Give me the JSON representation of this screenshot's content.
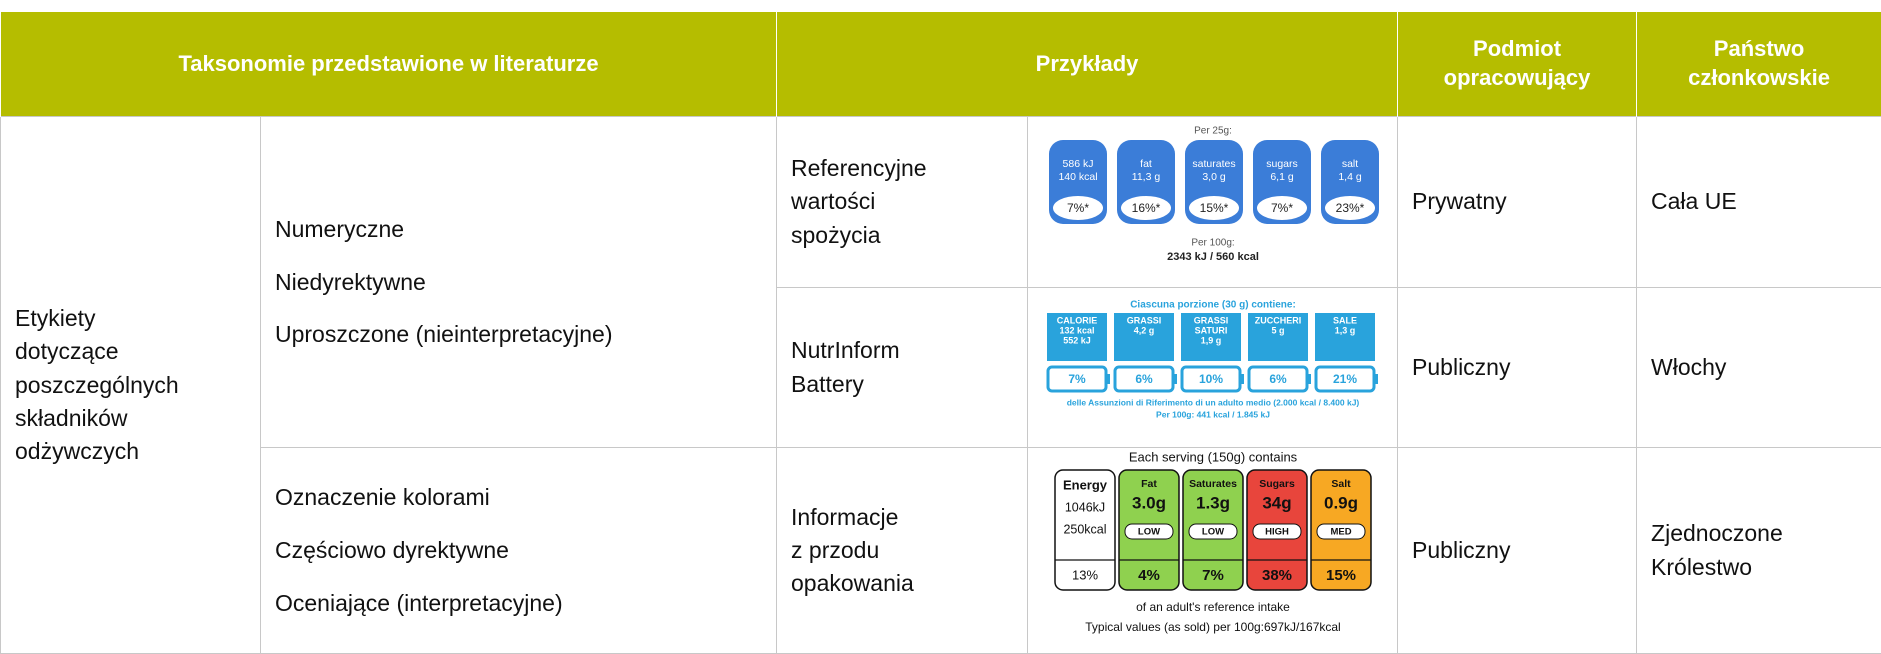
{
  "header": {
    "taxonomy": "Taksonomie przedstawione w literaturze",
    "examples": "Przykłady",
    "actor": [
      "Podmiot",
      "opracowujący"
    ],
    "state": [
      "Państwo",
      "członkowskie"
    ]
  },
  "category": [
    "Etykiety",
    "dotyczące",
    "poszczególnych",
    "składników",
    "odżywczych"
  ],
  "groups": [
    [
      "Numeryczne",
      "Niedyrektywne",
      "Uproszczone (nieinterpretacyjne)"
    ],
    [
      "Oznaczenie kolorami",
      "Częściowo dyrektywne",
      "Oceniające (interpretacyjne)"
    ]
  ],
  "rows": [
    {
      "example": [
        "Referencyjne",
        "wartości",
        "spożycia"
      ],
      "actor": "Prywatny",
      "state": [
        "Cała UE"
      ],
      "label": {
        "top": "Per 25g:",
        "tiles": [
          {
            "lines": [
              "586 kJ",
              "140 kcal"
            ],
            "pct": "7%*"
          },
          {
            "lines": [
              "fat",
              "11,3 g"
            ],
            "pct": "16%*"
          },
          {
            "lines": [
              "saturates",
              "3,0 g"
            ],
            "pct": "15%*"
          },
          {
            "lines": [
              "sugars",
              "6,1 g"
            ],
            "pct": "7%*"
          },
          {
            "lines": [
              "salt",
              "1,4 g"
            ],
            "pct": "23%*"
          }
        ],
        "bottom": [
          "Per 100g:",
          "2343 kJ / 560 kcal"
        ]
      }
    },
    {
      "example": [
        "NutrInform",
        "Battery"
      ],
      "actor": "Publiczny",
      "state": [
        "Włochy"
      ],
      "label": {
        "top": "Ciascuna porzione (30 g) contiene:",
        "tiles": [
          {
            "lines": [
              "CALORIE",
              "132 kcal",
              "552 kJ"
            ],
            "pct": "7%"
          },
          {
            "lines": [
              "GRASSI",
              "4,2 g"
            ],
            "pct": "6%"
          },
          {
            "lines": [
              "GRASSI",
              "SATURI",
              "1,9 g"
            ],
            "pct": "10%"
          },
          {
            "lines": [
              "ZUCCHERI",
              "5 g"
            ],
            "pct": "6%"
          },
          {
            "lines": [
              "SALE",
              "1,3 g"
            ],
            "pct": "21%"
          }
        ],
        "bottom": [
          "delle Assunzioni di Riferimento di un adulto medio (2.000 kcal / 8.400 kJ)",
          "Per 100g: 441 kcal / 1.845 kJ"
        ]
      }
    },
    {
      "example": [
        "Informacje",
        "z przodu",
        "opakowania"
      ],
      "actor": "Publiczny",
      "state": [
        "Zjednoczone",
        "Królestwo"
      ],
      "label": {
        "top": "Each serving (150g) contains",
        "tiles": [
          {
            "lines": [
              "Energy",
              "1046kJ",
              "250kcal"
            ],
            "pct": "13%"
          },
          {
            "lines": [
              "Fat",
              "3.0g"
            ],
            "band": "LOW",
            "pct": "4%"
          },
          {
            "lines": [
              "Saturates",
              "1.3g"
            ],
            "band": "LOW",
            "pct": "7%"
          },
          {
            "lines": [
              "Sugars",
              "34g"
            ],
            "band": "HIGH",
            "pct": "38%"
          },
          {
            "lines": [
              "Salt",
              "0.9g"
            ],
            "band": "MED",
            "pct": "15%"
          }
        ],
        "bottom": [
          "of an adult's reference intake",
          "Typical values (as sold) per 100g:697kJ/167kcal"
        ]
      }
    }
  ]
}
